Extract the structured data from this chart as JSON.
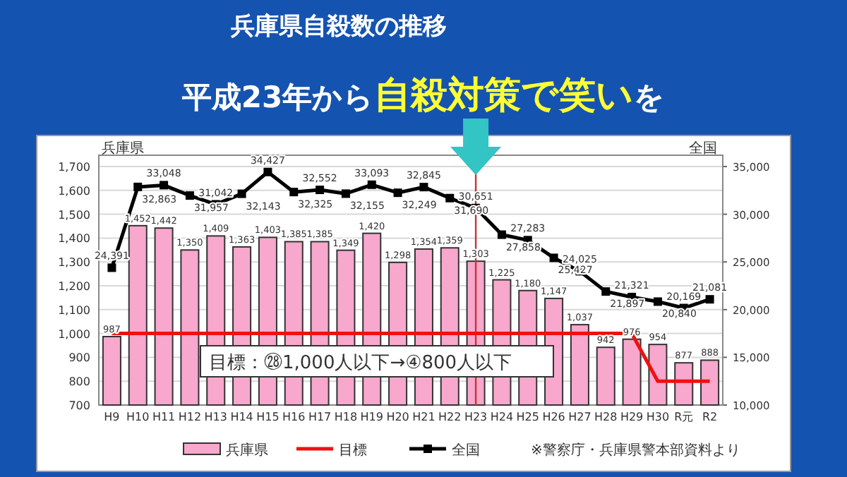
{
  "chart_data": {
    "type": "bar",
    "title": "兵庫県自殺数の推移",
    "subtitle": "平成23年から**自殺対策で笑い**を",
    "ylabel": "兵庫県",
    "y2label": "全国",
    "categories": [
      "H9",
      "H10",
      "H11",
      "H12",
      "H13",
      "H14",
      "H15",
      "H16",
      "H17",
      "H18",
      "H19",
      "H20",
      "H21",
      "H22",
      "H23",
      "H24",
      "H25",
      "H26",
      "H27",
      "H28",
      "H29",
      "H30",
      "R元",
      "R2"
    ],
    "series": [
      {
        "name": "兵庫県",
        "color": "#f7a8cc",
        "values": [
          987,
          1452,
          1442,
          1350,
          1409,
          1363,
          1403,
          1385,
          1385,
          1349,
          1420,
          1298,
          1354,
          1359,
          1303,
          1225,
          1180,
          1147,
          1037,
          942,
          976,
          954,
          877,
          888
        ],
        "value_labels": [
          "987",
          "1,452",
          "1,442",
          "1,350",
          "1,409",
          "1,363",
          "1,403",
          "1,385",
          "1,385",
          "1,349",
          "1,420",
          "1,298",
          "1,354",
          "1,359",
          "1,303",
          "1,225",
          "1,180",
          "1,147",
          "1,037",
          "942",
          "976",
          "954",
          "877",
          "888"
        ]
      },
      {
        "name": "目標",
        "type": "line",
        "color": "#ee1111",
        "marker": "none",
        "values": [
          1000,
          1000,
          1000,
          1000,
          1000,
          1000,
          1000,
          1000,
          1000,
          1000,
          1000,
          1000,
          1000,
          1000,
          1000,
          1000,
          1000,
          1000,
          1000,
          1000,
          1000,
          800,
          800,
          800
        ]
      },
      {
        "name": "全国",
        "type": "line",
        "axis": "y2",
        "color": "#000000",
        "marker": "square",
        "values": [
          24391,
          32863,
          33048,
          31957,
          31042,
          32143,
          34427,
          32325,
          32552,
          32155,
          33093,
          32249,
          32845,
          31690,
          30651,
          27858,
          27283,
          25427,
          24025,
          21897,
          21321,
          20840,
          20169,
          21081
        ],
        "value_labels": [
          "24,391",
          "32,863",
          "33,048",
          "31,957",
          "31,042",
          "32,143",
          "34,427",
          "32,325",
          "32,552",
          "32,155",
          "33,093",
          "32,249",
          "32,845",
          "31,690",
          "30,651",
          "27,858",
          "27,283",
          "25,427",
          "24,025",
          "21,897",
          "21,321",
          "20,840",
          "20,169",
          "21,081"
        ]
      }
    ],
    "ylim": [
      700,
      1700
    ],
    "yticks": [
      700,
      800,
      900,
      {
        "value": 1000,
        "label": "1,000"
      },
      {
        "value": 1100,
        "label": "1,100"
      },
      {
        "value": 1200,
        "label": "1,200"
      },
      {
        "value": 1300,
        "label": "1,300"
      },
      {
        "value": 1400,
        "label": "1,400"
      },
      {
        "value": 1500,
        "label": "1,500"
      },
      {
        "value": 1600,
        "label": "1,600"
      },
      {
        "value": 1700,
        "label": "1,700"
      }
    ],
    "y2lim": [
      10000,
      35000
    ],
    "y2ticks": [
      {
        "value": 10000,
        "label": "10,000"
      },
      {
        "value": 15000,
        "label": "15,000"
      },
      {
        "value": 20000,
        "label": "20,000"
      },
      {
        "value": 25000,
        "label": "25,000"
      },
      {
        "value": 30000,
        "label": "30,000"
      },
      {
        "value": 35000,
        "label": "35,000"
      }
    ],
    "ref_lines": [
      {
        "axis": "x",
        "value": "H23",
        "color": "#cc3333"
      }
    ],
    "annotations": [
      "目標：㉘1,000人以下→④800人以下",
      "※警察庁・兵庫県警本部資料より"
    ],
    "grid": "y",
    "legend": "bottom"
  }
}
